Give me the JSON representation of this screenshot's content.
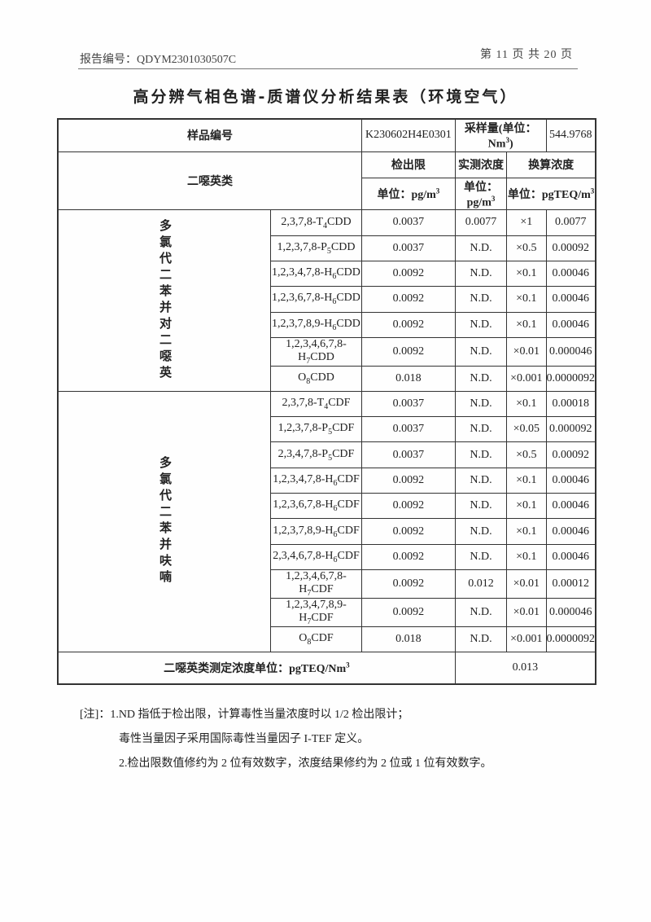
{
  "header": {
    "report_no": "报告编号：QDYM2301030507C",
    "page": "第 11 页 共 20 页"
  },
  "title": "高分辨气相色谱-质谱仪分析结果表（环境空气）",
  "table": {
    "sample_label": "样品编号",
    "sample_id": "K230602H4E0301",
    "volume_label": "采样量(单位：Nm",
    "volume_sup": "3",
    "volume_close": ")",
    "volume": "544.9768",
    "category_label": "二噁英类",
    "lod_label": "检出限",
    "measured_label": "实测浓度",
    "teq_label": "换算浓度",
    "lod_unit": "单位：pg/m",
    "measured_unit": "单位：pg/m",
    "teq_unit": "单位：pgTEQ/m",
    "unit_sup": "3",
    "groups": [
      {
        "label": "多氯代二苯并对二噁英",
        "rows": [
          {
            "pre": "2,3,7,8-T",
            "sub": "4",
            "post": "CDD",
            "lod": "0.0037",
            "measured": "0.0077",
            "tef": "×1",
            "teq": "0.0077"
          },
          {
            "pre": "1,2,3,7,8-P",
            "sub": "5",
            "post": "CDD",
            "lod": "0.0037",
            "measured": "N.D.",
            "tef": "×0.5",
            "teq": "0.00092"
          },
          {
            "pre": "1,2,3,4,7,8-H",
            "sub": "6",
            "post": "CDD",
            "lod": "0.0092",
            "measured": "N.D.",
            "tef": "×0.1",
            "teq": "0.00046"
          },
          {
            "pre": "1,2,3,6,7,8-H",
            "sub": "6",
            "post": "CDD",
            "lod": "0.0092",
            "measured": "N.D.",
            "tef": "×0.1",
            "teq": "0.00046"
          },
          {
            "pre": "1,2,3,7,8,9-H",
            "sub": "6",
            "post": "CDD",
            "lod": "0.0092",
            "measured": "N.D.",
            "tef": "×0.1",
            "teq": "0.00046"
          },
          {
            "pre": "1,2,3,4,6,7,8-H",
            "sub": "7",
            "post": "CDD",
            "lod": "0.0092",
            "measured": "N.D.",
            "tef": "×0.01",
            "teq": "0.000046"
          },
          {
            "pre": "O",
            "sub": "8",
            "post": "CDD",
            "lod": "0.018",
            "measured": "N.D.",
            "tef": "×0.001",
            "teq": "0.0000092"
          }
        ]
      },
      {
        "label": "多氯代二苯并呋喃",
        "rows": [
          {
            "pre": "2,3,7,8-T",
            "sub": "4",
            "post": "CDF",
            "lod": "0.0037",
            "measured": "N.D.",
            "tef": "×0.1",
            "teq": "0.00018"
          },
          {
            "pre": "1,2,3,7,8-P",
            "sub": "5",
            "post": "CDF",
            "lod": "0.0037",
            "measured": "N.D.",
            "tef": "×0.05",
            "teq": "0.000092"
          },
          {
            "pre": "2,3,4,7,8-P",
            "sub": "5",
            "post": "CDF",
            "lod": "0.0037",
            "measured": "N.D.",
            "tef": "×0.5",
            "teq": "0.00092"
          },
          {
            "pre": "1,2,3,4,7,8-H",
            "sub": "6",
            "post": "CDF",
            "lod": "0.0092",
            "measured": "N.D.",
            "tef": "×0.1",
            "teq": "0.00046"
          },
          {
            "pre": "1,2,3,6,7,8-H",
            "sub": "6",
            "post": "CDF",
            "lod": "0.0092",
            "measured": "N.D.",
            "tef": "×0.1",
            "teq": "0.00046"
          },
          {
            "pre": "1,2,3,7,8,9-H",
            "sub": "6",
            "post": "CDF",
            "lod": "0.0092",
            "measured": "N.D.",
            "tef": "×0.1",
            "teq": "0.00046"
          },
          {
            "pre": "2,3,4,6,7,8-H",
            "sub": "6",
            "post": "CDF",
            "lod": "0.0092",
            "measured": "N.D.",
            "tef": "×0.1",
            "teq": "0.00046"
          },
          {
            "pre": "1,2,3,4,6,7,8-H",
            "sub": "7",
            "post": "CDF",
            "lod": "0.0092",
            "measured": "0.012",
            "tef": "×0.01",
            "teq": "0.00012"
          },
          {
            "pre": "1,2,3,4,7,8,9-H",
            "sub": "7",
            "post": "CDF",
            "lod": "0.0092",
            "measured": "N.D.",
            "tef": "×0.01",
            "teq": "0.000046"
          },
          {
            "pre": "O",
            "sub": "8",
            "post": "CDF",
            "lod": "0.018",
            "measured": "N.D.",
            "tef": "×0.001",
            "teq": "0.0000092"
          }
        ]
      }
    ],
    "total_label": "二噁英类测定浓度单位：pgTEQ/Nm",
    "total_sup": "3",
    "total": "0.013"
  },
  "notes": [
    "[注]：1.ND 指低于检出限，计算毒性当量浓度时以 1/2 检出限计；",
    "毒性当量因子采用国际毒性当量因子 I-TEF 定义。",
    "2.检出限数值修约为 2 位有效数字，浓度结果修约为 2 位或 1 位有效数字。"
  ]
}
